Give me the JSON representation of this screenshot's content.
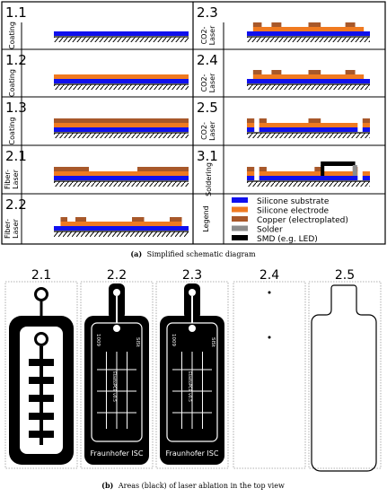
{
  "colors": {
    "silicone_substrate": "#1010ee",
    "silicone_electrode": "#f07a20",
    "copper": "#a8582a",
    "solder": "#8c8c8c",
    "smd": "#000000"
  },
  "schematic": {
    "steps": [
      {
        "id": "1.1",
        "process": "Coating"
      },
      {
        "id": "1.2",
        "process": "Coating"
      },
      {
        "id": "1.3",
        "process": "Coating"
      },
      {
        "id": "2.1",
        "process": "Fiber-\nLaser"
      },
      {
        "id": "2.2",
        "process": "Fiber-\nLaser"
      },
      {
        "id": "2.3",
        "process": "CO2-\nLaser"
      },
      {
        "id": "2.4",
        "process": "CO2-\nLaser"
      },
      {
        "id": "2.5",
        "process": "CO2-\nLaser"
      },
      {
        "id": "3.1",
        "process": "Soldering"
      }
    ],
    "legend_title": "Legend",
    "legend": [
      {
        "key": "silicone_substrate",
        "label": "Silicone substrate"
      },
      {
        "key": "silicone_electrode",
        "label": "Silicone electrode"
      },
      {
        "key": "copper",
        "label": "Copper (electroplated)"
      },
      {
        "key": "solder",
        "label": "Solder"
      },
      {
        "key": "smd",
        "label": "SMD (e.g. LED)"
      }
    ],
    "caption_label": "(a)",
    "caption_text": "Simplified schematic diagram"
  },
  "top_view": {
    "panels": [
      "2.1",
      "2.2",
      "2.3",
      "2.4",
      "2.5"
    ],
    "board_text_main": "Fraunhofer ISC",
    "board_text_side": "SISt",
    "board_text_num": "1009",
    "board_text_vertical": "ElastoPCB v0.5",
    "caption_label": "(b)",
    "caption_text": "Areas (black) of laser ablation in the top view"
  }
}
